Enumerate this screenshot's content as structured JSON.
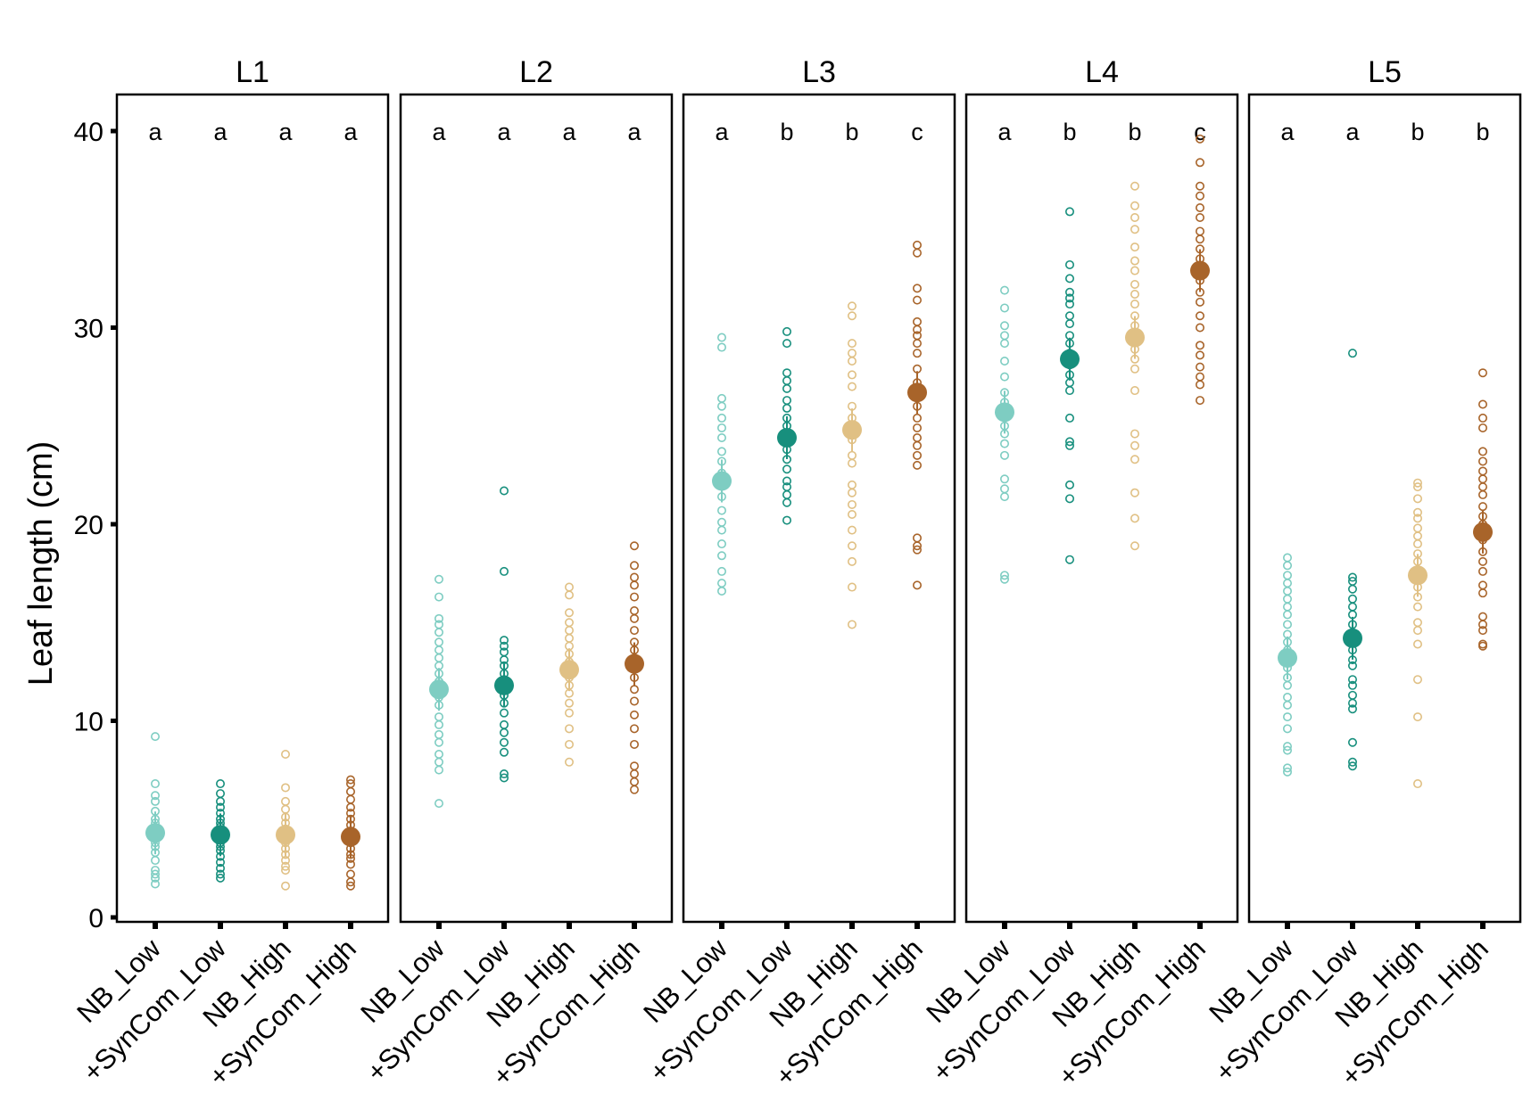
{
  "chart_data": {
    "type": "scatter",
    "ylabel": "Leaf length (cm)",
    "xlabel": "",
    "ylim": [
      0,
      40
    ],
    "yticks": [
      0,
      10,
      20,
      30,
      40
    ],
    "grid": false,
    "legend": "none",
    "categories": [
      "NB_Low",
      "+SynCom_Low",
      "NB_High",
      "+SynCom_High"
    ],
    "colors": [
      "#7ecdc2",
      "#178f7d",
      "#e0c084",
      "#a8642a"
    ],
    "panels": [
      {
        "title": "L1",
        "letters": [
          "a",
          "a",
          "a",
          "a"
        ],
        "means": [
          4.3,
          4.2,
          4.2,
          4.1
        ],
        "points": [
          [
            9.2,
            6.8,
            6.2,
            5.9,
            5.4,
            5.0,
            4.8,
            4.5,
            4.3,
            4.0,
            3.8,
            3.6,
            3.3,
            2.9,
            2.4,
            2.2,
            2.0,
            1.7
          ],
          [
            6.8,
            6.3,
            5.9,
            5.6,
            5.3,
            5.0,
            4.8,
            4.6,
            4.4,
            4.2,
            4.0,
            3.8,
            3.6,
            3.4,
            3.1,
            2.8,
            2.5,
            2.2,
            2.0
          ],
          [
            8.3,
            6.6,
            5.9,
            5.5,
            5.1,
            4.8,
            4.5,
            4.3,
            4.1,
            3.8,
            3.5,
            3.2,
            2.9,
            2.6,
            2.4,
            1.6
          ],
          [
            7.0,
            6.8,
            6.4,
            6.0,
            5.6,
            5.3,
            5.0,
            4.7,
            4.4,
            4.1,
            3.8,
            3.5,
            3.2,
            3.0,
            2.7,
            2.2,
            1.8,
            1.6
          ]
        ]
      },
      {
        "title": "L2",
        "letters": [
          "a",
          "a",
          "a",
          "a"
        ],
        "means": [
          11.6,
          11.8,
          12.6,
          12.9
        ],
        "points": [
          [
            17.2,
            16.3,
            15.2,
            14.9,
            14.5,
            14.0,
            13.6,
            13.2,
            12.8,
            12.4,
            12.0,
            11.6,
            11.2,
            10.8,
            10.2,
            9.8,
            9.3,
            8.9,
            8.3,
            7.9,
            7.5,
            5.8
          ],
          [
            21.7,
            17.6,
            14.1,
            13.8,
            13.5,
            13.1,
            12.8,
            12.4,
            12.1,
            11.7,
            11.3,
            10.9,
            10.4,
            9.8,
            9.4,
            8.9,
            8.4,
            7.3,
            7.1
          ],
          [
            16.8,
            16.4,
            15.5,
            15.0,
            14.6,
            14.2,
            13.8,
            13.4,
            13.0,
            12.6,
            12.2,
            11.8,
            11.4,
            10.9,
            10.4,
            9.6,
            8.8,
            7.9
          ],
          [
            18.9,
            17.9,
            17.3,
            16.9,
            16.3,
            15.6,
            15.2,
            14.6,
            14.0,
            13.6,
            13.2,
            12.7,
            12.2,
            11.6,
            11.0,
            10.3,
            9.6,
            8.8,
            7.7,
            7.3,
            6.9,
            6.5
          ]
        ]
      },
      {
        "title": "L3",
        "letters": [
          "a",
          "b",
          "b",
          "c"
        ],
        "means": [
          22.2,
          24.4,
          24.8,
          26.7
        ],
        "points": [
          [
            29.5,
            29.0,
            26.4,
            26.0,
            25.4,
            24.9,
            24.4,
            23.7,
            23.2,
            22.6,
            22.0,
            21.4,
            20.7,
            20.1,
            19.7,
            19.0,
            18.4,
            17.6,
            17.0,
            16.6
          ],
          [
            29.8,
            29.2,
            27.7,
            27.3,
            26.9,
            26.3,
            25.9,
            25.4,
            25.0,
            24.6,
            24.2,
            23.8,
            23.3,
            22.8,
            22.2,
            21.9,
            21.5,
            21.1,
            20.2
          ],
          [
            31.1,
            30.6,
            29.2,
            28.7,
            28.3,
            27.6,
            27.0,
            26.0,
            25.4,
            24.9,
            24.3,
            23.5,
            23.1,
            22.0,
            21.6,
            21.0,
            20.5,
            19.7,
            18.9,
            18.1,
            16.8,
            14.9
          ],
          [
            34.2,
            33.8,
            32.0,
            31.4,
            30.3,
            29.9,
            29.6,
            29.2,
            28.7,
            27.9,
            27.2,
            26.0,
            25.4,
            24.9,
            24.4,
            24.0,
            23.5,
            23.0,
            19.3,
            18.9,
            18.7,
            16.9
          ]
        ]
      },
      {
        "title": "L4",
        "letters": [
          "a",
          "b",
          "b",
          "c"
        ],
        "means": [
          25.7,
          28.4,
          29.5,
          32.9
        ],
        "points": [
          [
            31.9,
            31.0,
            30.1,
            29.6,
            29.2,
            28.3,
            27.5,
            26.7,
            26.2,
            25.5,
            25.0,
            24.6,
            24.1,
            23.5,
            22.3,
            21.8,
            21.4,
            17.4,
            17.2
          ],
          [
            35.9,
            33.2,
            32.5,
            31.8,
            31.5,
            31.2,
            30.6,
            30.2,
            29.6,
            29.2,
            28.7,
            28.1,
            27.6,
            27.2,
            26.8,
            25.4,
            24.2,
            24.0,
            22.0,
            21.3,
            18.2
          ],
          [
            37.2,
            36.2,
            35.6,
            35.0,
            34.1,
            33.4,
            32.9,
            32.2,
            31.7,
            31.2,
            30.6,
            30.1,
            29.6,
            28.9,
            28.4,
            27.9,
            26.8,
            24.6,
            24.0,
            23.3,
            21.6,
            20.3,
            18.9
          ],
          [
            39.6,
            38.4,
            37.2,
            36.7,
            36.1,
            35.6,
            34.9,
            34.5,
            34.0,
            33.5,
            33.0,
            32.4,
            31.8,
            31.3,
            30.6,
            30.0,
            29.1,
            28.6,
            28.0,
            27.5,
            27.1,
            26.3
          ]
        ]
      },
      {
        "title": "L5",
        "letters": [
          "a",
          "a",
          "b",
          "b"
        ],
        "means": [
          13.2,
          14.2,
          17.4,
          19.6
        ],
        "points": [
          [
            18.3,
            17.9,
            17.4,
            17.0,
            16.6,
            16.2,
            15.8,
            15.4,
            14.9,
            14.4,
            14.0,
            13.6,
            13.1,
            12.7,
            12.2,
            11.8,
            11.2,
            10.8,
            10.2,
            9.6,
            8.7,
            8.5,
            7.6,
            7.4
          ],
          [
            28.7,
            17.3,
            17.1,
            16.7,
            16.2,
            15.8,
            15.4,
            14.9,
            14.5,
            14.0,
            13.6,
            13.1,
            12.8,
            12.1,
            11.8,
            11.3,
            10.9,
            10.6,
            8.9,
            7.9,
            7.7
          ],
          [
            22.1,
            21.9,
            21.3,
            20.6,
            20.3,
            19.8,
            19.4,
            19.0,
            18.5,
            18.1,
            17.7,
            17.2,
            16.8,
            16.3,
            15.8,
            15.0,
            14.6,
            13.9,
            12.1,
            10.2,
            6.8
          ],
          [
            27.7,
            26.1,
            25.4,
            24.9,
            23.7,
            23.2,
            22.7,
            22.3,
            21.9,
            21.5,
            20.9,
            20.4,
            20.0,
            19.6,
            19.2,
            18.6,
            18.1,
            17.6,
            16.9,
            16.5,
            15.3,
            14.9,
            14.6,
            13.9,
            13.8
          ]
        ]
      }
    ]
  }
}
